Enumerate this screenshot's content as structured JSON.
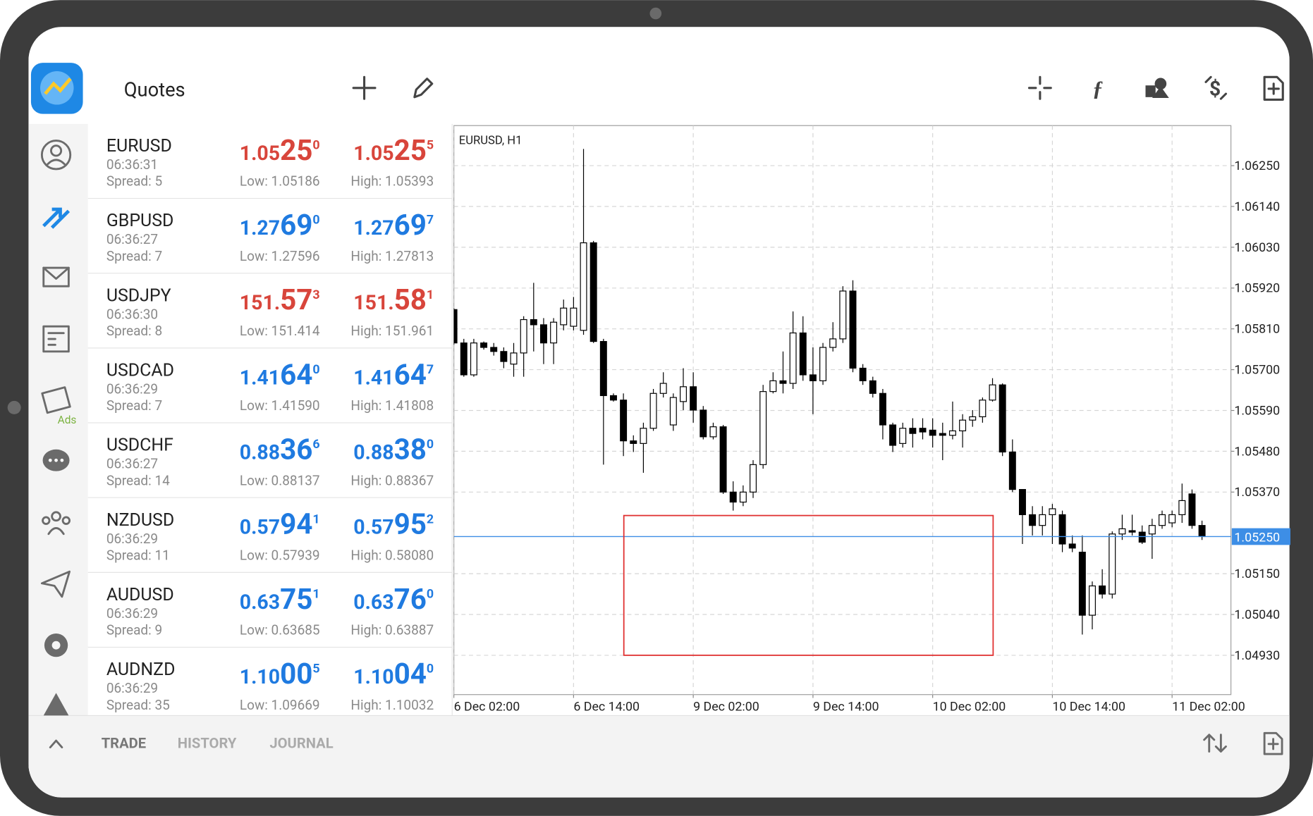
{
  "header": {
    "title": "Quotes"
  },
  "quotes": [
    {
      "symbol": "EURUSD",
      "time": "06:36:31",
      "spread": "Spread: 5",
      "color": "#d8453b",
      "bid": {
        "prefix": "1.05",
        "big": "25",
        "sup": "0"
      },
      "ask": {
        "prefix": "1.05",
        "big": "25",
        "sup": "5"
      },
      "low": "Low: 1.05186",
      "high": "High: 1.05393"
    },
    {
      "symbol": "GBPUSD",
      "time": "06:36:27",
      "spread": "Spread: 7",
      "color": "#1f7ae0",
      "bid": {
        "prefix": "1.27",
        "big": "69",
        "sup": "0"
      },
      "ask": {
        "prefix": "1.27",
        "big": "69",
        "sup": "7"
      },
      "low": "Low: 1.27596",
      "high": "High: 1.27813"
    },
    {
      "symbol": "USDJPY",
      "time": "06:36:30",
      "spread": "Spread: 8",
      "color": "#d8453b",
      "bid": {
        "prefix": "151.",
        "big": "57",
        "sup": "3"
      },
      "ask": {
        "prefix": "151.",
        "big": "58",
        "sup": "1"
      },
      "low": "Low: 151.414",
      "high": "High: 151.961"
    },
    {
      "symbol": "USDCAD",
      "time": "06:36:29",
      "spread": "Spread: 7",
      "color": "#1f7ae0",
      "bid": {
        "prefix": "1.41",
        "big": "64",
        "sup": "0"
      },
      "ask": {
        "prefix": "1.41",
        "big": "64",
        "sup": "7"
      },
      "low": "Low: 1.41590",
      "high": "High: 1.41808"
    },
    {
      "symbol": "USDCHF",
      "time": "06:36:27",
      "spread": "Spread: 14",
      "color": "#1f7ae0",
      "bid": {
        "prefix": "0.88",
        "big": "36",
        "sup": "6"
      },
      "ask": {
        "prefix": "0.88",
        "big": "38",
        "sup": "0"
      },
      "low": "Low: 0.88137",
      "high": "High: 0.88367"
    },
    {
      "symbol": "NZDUSD",
      "time": "06:36:29",
      "spread": "Spread: 11",
      "color": "#1f7ae0",
      "bid": {
        "prefix": "0.57",
        "big": "94",
        "sup": "1"
      },
      "ask": {
        "prefix": "0.57",
        "big": "95",
        "sup": "2"
      },
      "low": "Low: 0.57939",
      "high": "High: 0.58080"
    },
    {
      "symbol": "AUDUSD",
      "time": "06:36:29",
      "spread": "Spread: 9",
      "color": "#1f7ae0",
      "bid": {
        "prefix": "0.63",
        "big": "75",
        "sup": "1"
      },
      "ask": {
        "prefix": "0.63",
        "big": "76",
        "sup": "0"
      },
      "low": "Low: 0.63685",
      "high": "High: 0.63887"
    },
    {
      "symbol": "AUDNZD",
      "time": "06:36:29",
      "spread": "Spread: 35",
      "color": "#1f7ae0",
      "bid": {
        "prefix": "1.10",
        "big": "00",
        "sup": "5"
      },
      "ask": {
        "prefix": "1.10",
        "big": "04",
        "sup": "0"
      },
      "low": "Low: 1.09669",
      "high": "High: 1.10032"
    }
  ],
  "sidebar": {
    "ads_label": "Ads"
  },
  "bottom_tabs": [
    "TRADE",
    "HISTORY",
    "JOURNAL"
  ],
  "chart_data": {
    "type": "candlestick",
    "title": "EURUSD, H1",
    "bull_color": "#ffffff",
    "bear_color": "#000000",
    "grid": true,
    "xlim": [
      0,
      77.9
    ],
    "xticks": [
      {
        "value": 0,
        "label": "6 Dec 02:00"
      },
      {
        "value": 12,
        "label": "6 Dec 14:00"
      },
      {
        "value": 24,
        "label": "9 Dec 02:00"
      },
      {
        "value": 36,
        "label": "9 Dec 14:00"
      },
      {
        "value": 48,
        "label": "10 Dec 02:00"
      },
      {
        "value": 60,
        "label": "10 Dec 14:00"
      },
      {
        "value": 72,
        "label": "11 Dec 02:00"
      }
    ],
    "ylim": [
      1.04824,
      1.06358
    ],
    "yticks": [
      {
        "value": 1.0625,
        "label": "1.06250"
      },
      {
        "value": 1.0614,
        "label": "1.06140"
      },
      {
        "value": 1.0603,
        "label": "1.06030"
      },
      {
        "value": 1.0592,
        "label": "1.05920"
      },
      {
        "value": 1.0581,
        "label": "1.05810"
      },
      {
        "value": 1.057,
        "label": "1.05700"
      },
      {
        "value": 1.0559,
        "label": "1.05590"
      },
      {
        "value": 1.0548,
        "label": "1.05480"
      },
      {
        "value": 1.0537,
        "label": "1.05370"
      },
      {
        "value": 1.0515,
        "label": "1.05150"
      },
      {
        "value": 1.0504,
        "label": "1.05040"
      },
      {
        "value": 1.0493,
        "label": "1.04930"
      }
    ],
    "current_price": {
      "value": 1.0525,
      "label": "1.05250",
      "color": "#3d8ee6"
    },
    "candles": [
      [
        1.05862,
        1.05866,
        1.05767,
        1.05772
      ],
      [
        1.05772,
        1.05783,
        1.05681,
        1.05686
      ],
      [
        1.05686,
        1.05783,
        1.05681,
        1.05772
      ],
      [
        1.05772,
        1.05776,
        1.05754,
        1.0576
      ],
      [
        1.0576,
        1.05772,
        1.05738,
        1.05749
      ],
      [
        1.05749,
        1.0576,
        1.05704,
        1.05722
      ],
      [
        1.05715,
        1.05772,
        1.05681,
        1.05745
      ],
      [
        1.05745,
        1.05844,
        1.05681,
        1.05835
      ],
      [
        1.05835,
        1.05934,
        1.05749,
        1.05821
      ],
      [
        1.05821,
        1.05839,
        1.05715,
        1.05772
      ],
      [
        1.05772,
        1.05839,
        1.05715,
        1.05828
      ],
      [
        1.05821,
        1.05889,
        1.05806,
        1.05866
      ],
      [
        1.05817,
        1.05896,
        1.05806,
        1.05866
      ],
      [
        1.05806,
        1.06295,
        1.05794,
        1.06042
      ],
      [
        1.06042,
        1.06047,
        1.05772,
        1.05776
      ],
      [
        1.05776,
        1.05783,
        1.05444,
        1.0563
      ],
      [
        1.0563,
        1.05636,
        1.05614,
        1.05618
      ],
      [
        1.05618,
        1.05636,
        1.05467,
        1.05508
      ],
      [
        1.05508,
        1.05523,
        1.05478,
        1.05501
      ],
      [
        1.05501,
        1.05557,
        1.05422,
        1.05542
      ],
      [
        1.05542,
        1.05648,
        1.05535,
        1.05636
      ],
      [
        1.05636,
        1.05693,
        1.05625,
        1.05663
      ],
      [
        1.05551,
        1.05636,
        1.05535,
        1.05625
      ],
      [
        1.05614,
        1.05704,
        1.05591,
        1.05654
      ],
      [
        1.05654,
        1.05693,
        1.05557,
        1.05591
      ],
      [
        1.05591,
        1.05602,
        1.05512,
        1.05519
      ],
      [
        1.05519,
        1.05557,
        1.05512,
        1.05546
      ],
      [
        1.05546,
        1.05551,
        1.05365,
        1.0537
      ],
      [
        1.0537,
        1.05399,
        1.0532,
        1.05343
      ],
      [
        1.05343,
        1.05388,
        1.05332,
        1.0537
      ],
      [
        1.0537,
        1.05456,
        1.05354,
        1.05444
      ],
      [
        1.05444,
        1.05659,
        1.05433,
        1.05641
      ],
      [
        1.05641,
        1.05693,
        1.05636,
        1.0567
      ],
      [
        1.0567,
        1.05749,
        1.05636,
        1.05663
      ],
      [
        1.05663,
        1.05857,
        1.05648,
        1.05799
      ],
      [
        1.05799,
        1.05844,
        1.0567,
        1.05686
      ],
      [
        1.05686,
        1.0576,
        1.0558,
        1.0567
      ],
      [
        1.0567,
        1.05772,
        1.05659,
        1.0576
      ],
      [
        1.0576,
        1.05828,
        1.05749,
        1.05783
      ],
      [
        1.05783,
        1.05925,
        1.05772,
        1.05912
      ],
      [
        1.05912,
        1.05941,
        1.05693,
        1.05704
      ],
      [
        1.05704,
        1.05715,
        1.05659,
        1.0567
      ],
      [
        1.0567,
        1.05681,
        1.05625,
        1.05636
      ],
      [
        1.05636,
        1.05648,
        1.05512,
        1.05551
      ],
      [
        1.05551,
        1.05557,
        1.05478,
        1.05496
      ],
      [
        1.05501,
        1.05557,
        1.0549,
        1.05542
      ],
      [
        1.05542,
        1.05569,
        1.0549,
        1.05528
      ],
      [
        1.05542,
        1.05569,
        1.05512,
        1.05532
      ],
      [
        1.05537,
        1.05569,
        1.0549,
        1.05523
      ],
      [
        1.05528,
        1.05557,
        1.05456,
        1.05523
      ],
      [
        1.05523,
        1.05614,
        1.05512,
        1.05535
      ],
      [
        1.05535,
        1.0558,
        1.0549,
        1.05564
      ],
      [
        1.05564,
        1.05591,
        1.05546,
        1.05573
      ],
      [
        1.05573,
        1.05625,
        1.05557,
        1.05618
      ],
      [
        1.05618,
        1.05677,
        1.05614,
        1.05659
      ],
      [
        1.05659,
        1.05663,
        1.05467,
        1.05478
      ],
      [
        1.05478,
        1.05512,
        1.0537,
        1.05377
      ],
      [
        1.05377,
        1.05377,
        1.0523,
        1.05309
      ],
      [
        1.05309,
        1.05332,
        1.05253,
        1.0528
      ],
      [
        1.0528,
        1.05332,
        1.05253,
        1.05309
      ],
      [
        1.05309,
        1.05338,
        1.0523,
        1.05325
      ],
      [
        1.05309,
        1.0532,
        1.05208,
        1.0523
      ],
      [
        1.0523,
        1.05253,
        1.05208,
        1.05219
      ],
      [
        1.05208,
        1.05253,
        1.04986,
        1.05038
      ],
      [
        1.05038,
        1.05129,
        1.05,
        1.05117
      ],
      [
        1.05117,
        1.05162,
        1.05083,
        1.05095
      ],
      [
        1.05095,
        1.05264,
        1.05083,
        1.05257
      ],
      [
        1.05257,
        1.05309,
        1.05241,
        1.05271
      ],
      [
        1.05266,
        1.05309,
        1.05253,
        1.05262
      ],
      [
        1.05262,
        1.0528,
        1.0523,
        1.05235
      ],
      [
        1.05257,
        1.05298,
        1.0519,
        1.0528
      ],
      [
        1.0528,
        1.0532,
        1.05271,
        1.05309
      ],
      [
        1.05287,
        1.0532,
        1.05275,
        1.05309
      ],
      [
        1.05309,
        1.05393,
        1.05287,
        1.05347
      ],
      [
        1.05365,
        1.05377,
        1.05271,
        1.0528
      ],
      [
        1.0528,
        1.05293,
        1.05241,
        1.0525
      ]
    ]
  }
}
